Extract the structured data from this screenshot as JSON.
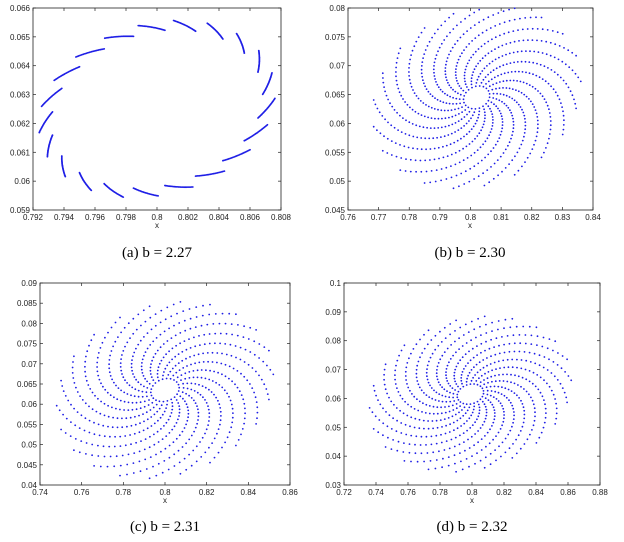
{
  "figure": {
    "panels": [
      {
        "id": "a",
        "caption": "(a)  b = 2.27"
      },
      {
        "id": "b",
        "caption": "(b)  b = 2.30"
      },
      {
        "id": "c",
        "caption": "(c)  b = 2.31"
      },
      {
        "id": "d",
        "caption": "(d)  b = 2.32"
      }
    ]
  },
  "colors": {
    "points": "#1f1fe6",
    "frame": "#222222"
  },
  "chart_data": [
    {
      "type": "scatter",
      "caption": "(a)  b = 2.27",
      "xlabel": "x",
      "ylabel": "",
      "xlim": [
        0.792,
        0.808
      ],
      "ylim": [
        0.059,
        0.066
      ],
      "xticks": [
        "0.792",
        "0.794",
        "0.796",
        "0.798",
        "0.8",
        "0.802",
        "0.804",
        "0.806",
        "0.808"
      ],
      "yticks": [
        "0.059",
        "0.06",
        "0.061",
        "0.062",
        "0.063",
        "0.064",
        "0.065",
        "0.066"
      ],
      "pattern": {
        "kind": "ring",
        "cx": 0.8,
        "cy": 0.0625,
        "rx": 0.0078,
        "ry": 0.0029,
        "tilt_deg": 20,
        "arcs": 21,
        "points_per_arc": 28
      },
      "grid": false
    },
    {
      "type": "scatter",
      "caption": "(b)  b = 2.30",
      "xlabel": "x",
      "ylabel": "",
      "xlim": [
        0.76,
        0.84
      ],
      "ylim": [
        0.045,
        0.08
      ],
      "xticks": [
        "0.76",
        "0.77",
        "0.78",
        "0.79",
        "0.8",
        "0.81",
        "0.82",
        "0.83",
        "0.84"
      ],
      "yticks": [
        "0.045",
        "0.05",
        "0.055",
        "0.06",
        "0.065",
        "0.07",
        "0.075",
        "0.08"
      ],
      "pattern": {
        "kind": "spiral",
        "cx": 0.802,
        "cy": 0.0645,
        "rx": 0.034,
        "ry": 0.0155,
        "arms": 21,
        "points_per_arm": 34,
        "twist": 1.4
      },
      "grid": false
    },
    {
      "type": "scatter",
      "caption": "(c)  b = 2.31",
      "xlabel": "x",
      "ylabel": "",
      "xlim": [
        0.74,
        0.86
      ],
      "ylim": [
        0.04,
        0.09
      ],
      "xticks": [
        "0.74",
        "0.76",
        "0.78",
        "0.8",
        "0.82",
        "0.84",
        "0.86"
      ],
      "yticks": [
        "0.04",
        "0.045",
        "0.05",
        "0.055",
        "0.06",
        "0.065",
        "0.07",
        "0.075",
        "0.08",
        "0.085",
        "0.09"
      ],
      "pattern": {
        "kind": "spiral",
        "cx": 0.8,
        "cy": 0.0635,
        "rx": 0.052,
        "ry": 0.0215,
        "arms": 22,
        "points_per_arm": 30,
        "twist": 1.5
      },
      "grid": false
    },
    {
      "type": "scatter",
      "caption": "(d)  b = 2.32",
      "xlabel": "x",
      "ylabel": "",
      "xlim": [
        0.72,
        0.88
      ],
      "ylim": [
        0.03,
        0.1
      ],
      "xticks": [
        "0.72",
        "0.74",
        "0.76",
        "0.78",
        "0.8",
        "0.82",
        "0.84",
        "0.86",
        "0.88"
      ],
      "yticks": [
        "0.03",
        "0.04",
        "0.05",
        "0.06",
        "0.07",
        "0.08",
        "0.09",
        "0.1"
      ],
      "pattern": {
        "kind": "spiral",
        "cx": 0.799,
        "cy": 0.0615,
        "rx": 0.063,
        "ry": 0.0265,
        "arms": 22,
        "points_per_arm": 30,
        "twist": 1.6
      },
      "grid": false
    }
  ]
}
